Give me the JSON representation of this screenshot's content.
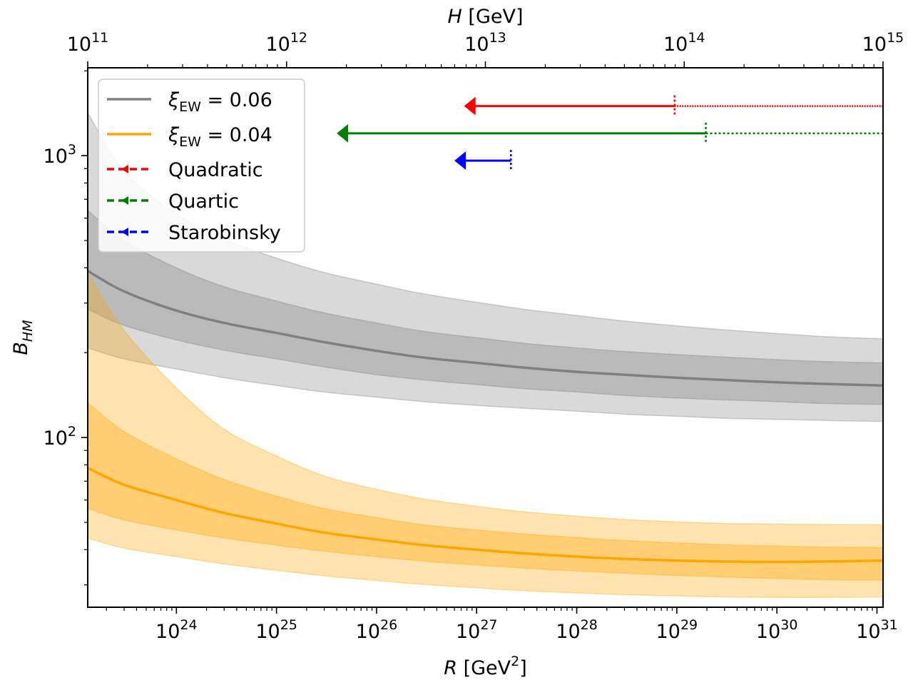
{
  "chart_data": {
    "type": "line",
    "title": "",
    "xlabel": {
      "italic": "R",
      "unit_pre": " [GeV",
      "unit_sup": "2",
      "unit_post": "]"
    },
    "ylabel": {
      "base": "B",
      "sub": "HM"
    },
    "top_xlabel": {
      "italic": "H",
      "unit": " [GeV]"
    },
    "x_scale": "log",
    "y_scale": "log",
    "xlim": [
      1.3e+23,
      1.15e+31
    ],
    "ylim": [
      25,
      2050
    ],
    "top_xlim": [
      100000000000.0,
      1000000000000000.0
    ],
    "bottom_ticks": [
      {
        "base": "10",
        "exp": "24",
        "value": 1e+24
      },
      {
        "base": "10",
        "exp": "25",
        "value": 1e+25
      },
      {
        "base": "10",
        "exp": "26",
        "value": 1e+26
      },
      {
        "base": "10",
        "exp": "27",
        "value": 1e+27
      },
      {
        "base": "10",
        "exp": "28",
        "value": 1e+28
      },
      {
        "base": "10",
        "exp": "29",
        "value": 1e+29
      },
      {
        "base": "10",
        "exp": "30",
        "value": 1e+30
      },
      {
        "base": "10",
        "exp": "31",
        "value": 1e+31
      }
    ],
    "top_ticks": [
      {
        "base": "10",
        "exp": "11",
        "value": 100000000000.0
      },
      {
        "base": "10",
        "exp": "12",
        "value": 1000000000000.0
      },
      {
        "base": "10",
        "exp": "13",
        "value": 10000000000000.0
      },
      {
        "base": "10",
        "exp": "14",
        "value": 100000000000000.0
      },
      {
        "base": "10",
        "exp": "15",
        "value": 1000000000000000.0
      }
    ],
    "y_ticks": [
      {
        "base": "10",
        "exp": "2",
        "value": 100
      },
      {
        "base": "10",
        "exp": "3",
        "value": 1000
      }
    ],
    "x_samples": [
      1.3e+23,
      3e+23,
      1e+24,
      3e+24,
      1e+25,
      3e+25,
      1e+26,
      3e+26,
      1e+27,
      3e+27,
      1e+28,
      3e+28,
      1e+29,
      3e+29,
      1e+30,
      3e+30,
      1.15e+31
    ],
    "series": [
      {
        "name": "ξ_EW = 0.06",
        "legend": {
          "sym": "ξ",
          "sub": "EW",
          "rest": " = 0.06"
        },
        "color": "#808080",
        "central": [
          390,
          330,
          282,
          255,
          235,
          218,
          203,
          192,
          184,
          177,
          171,
          167,
          163,
          160,
          157,
          155,
          153
        ],
        "band_inner": {
          "upper": [
            640,
            500,
            400,
            343,
            305,
            277,
            255,
            238,
            226,
            216,
            208,
            202,
            197,
            193,
            189,
            186,
            184
          ],
          "lower": [
            285,
            250,
            222,
            204,
            190,
            178,
            167,
            160,
            154,
            149,
            145,
            141,
            138,
            136,
            134,
            132,
            131
          ]
        },
        "band_outer": {
          "upper": [
            1420,
            880,
            620,
            505,
            433,
            385,
            350,
            323,
            302,
            285,
            271,
            259,
            249,
            241,
            234,
            228,
            224
          ]
        },
        "band_outer_lower": [
          208,
          190,
          175,
          163,
          153,
          145,
          139,
          134,
          130,
          127,
          124,
          121,
          119,
          117,
          116,
          115,
          114
        ]
      },
      {
        "name": "ξ_EW = 0.04",
        "legend": {
          "sym": "ξ",
          "sub": "EW",
          "rest": " = 0.04"
        },
        "color": "#ffa500",
        "central": [
          78,
          68,
          60,
          54,
          49.5,
          46,
          43.5,
          41.5,
          40,
          38.8,
          37.8,
          37.1,
          36.6,
          36.3,
          36.2,
          36.3,
          36.6
        ],
        "band_inner": {
          "upper": [
            133,
            105,
            84,
            71,
            62,
            56,
            52,
            49,
            47,
            45.5,
            44.2,
            43.1,
            42.3,
            41.7,
            41.2,
            40.9,
            40.7
          ],
          "lower": [
            56,
            51,
            47,
            44,
            41.5,
            39.5,
            37.8,
            36.4,
            35.3,
            34.4,
            33.6,
            33,
            32.4,
            32,
            31.6,
            31.3,
            31.2
          ]
        },
        "band_outer": {
          "upper": [
            380,
            240,
            150,
            107,
            86,
            73,
            65.5,
            60.5,
            57,
            54.5,
            52.6,
            51.2,
            50.2,
            49.6,
            49.3,
            49.1,
            49
          ]
        },
        "band_outer_lower": [
          44,
          40.5,
          37.8,
          35.6,
          33.8,
          32.3,
          31.1,
          30.1,
          29.3,
          28.6,
          28.1,
          27.7,
          27.4,
          27.2,
          27.1,
          27.1,
          27.2
        ]
      }
    ],
    "arrows": [
      {
        "name": "Quadratic",
        "color": "#ff0000",
        "y": 1500,
        "x_head": 7.5e+26,
        "x_mark": 9.5e+28,
        "x_dotted_end": 1.15e+31,
        "style": "dotted-dense"
      },
      {
        "name": "Quartic",
        "color": "#008000",
        "y": 1200,
        "x_head": 4e+25,
        "x_mark": 1.95e+29,
        "x_dotted_end": 1.15e+31,
        "style": "dotted"
      },
      {
        "name": "Starobinsky",
        "color": "#0000ff",
        "y": 960,
        "x_head": 6e+26,
        "x_mark": 2.2e+27,
        "x_dotted_end": null,
        "style": "none"
      }
    ],
    "legend_position": "upper-left",
    "legend_entries": [
      {
        "kind": "line",
        "series": 0
      },
      {
        "kind": "line",
        "series": 1
      },
      {
        "kind": "dashed-arrow",
        "label": "Quadratic",
        "color": "#ff0000"
      },
      {
        "kind": "dashed-arrow",
        "label": "Quartic",
        "color": "#008000"
      },
      {
        "kind": "dashed-arrow",
        "label": "Starobinsky",
        "color": "#0000ff"
      }
    ]
  }
}
